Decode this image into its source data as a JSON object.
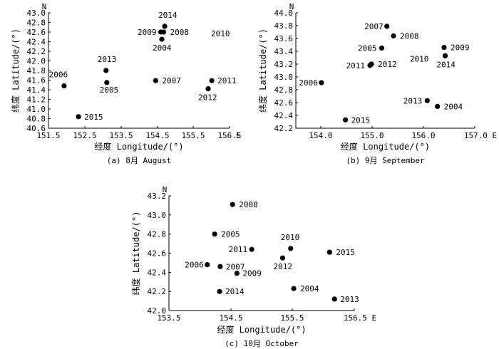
{
  "chart_data": [
    {
      "type": "scatter",
      "caption": "(a) 8月 August",
      "xlabel": "经度 Longitude/(°)",
      "ylabel": "纬度 Latitude/(°)",
      "x_unit_label": "E",
      "y_unit_label": "N",
      "xlim": [
        151.5,
        156.5
      ],
      "ylim": [
        40.6,
        43.0
      ],
      "x_ticks": [
        "151.5",
        "152.5",
        "153.5",
        "154.5",
        "155.5",
        "156.5"
      ],
      "y_ticks": [
        "40.6",
        "40.8",
        "41.0",
        "41.2",
        "41.4",
        "41.6",
        "41.8",
        "42.0",
        "42.2",
        "42.4",
        "42.6",
        "42.8",
        "43.0"
      ],
      "points": [
        {
          "label": "2006",
          "x": 151.93,
          "y": 41.48
        },
        {
          "label": "2015",
          "x": 152.33,
          "y": 40.84
        },
        {
          "label": "2013",
          "x": 153.09,
          "y": 41.8
        },
        {
          "label": "2005",
          "x": 153.11,
          "y": 41.55
        },
        {
          "label": "2007",
          "x": 154.46,
          "y": 41.59
        },
        {
          "label": "2014",
          "x": 154.71,
          "y": 42.72
        },
        {
          "label": "2009",
          "x": 154.6,
          "y": 42.6
        },
        {
          "label": "2008",
          "x": 154.68,
          "y": 42.6
        },
        {
          "label": "2004",
          "x": 154.63,
          "y": 42.45
        },
        {
          "label": "2011",
          "x": 156.01,
          "y": 41.59
        },
        {
          "label": "2012",
          "x": 155.91,
          "y": 41.42
        },
        {
          "label": "2010",
          "x": null,
          "y": null
        }
      ]
    },
    {
      "type": "scatter",
      "caption": "(b) 9月 September",
      "xlabel": "经度 Longitude/(°)",
      "ylabel": "纬度 Latitude/(°)",
      "x_unit_label": "E",
      "y_unit_label": "N",
      "xlim": [
        153.5,
        157.0
      ],
      "ylim": [
        42.2,
        44.0
      ],
      "x_ticks": [
        "154.0",
        "155.0",
        "156.0",
        "157.0 E"
      ],
      "y_ticks": [
        "42.2",
        "42.4",
        "42.6",
        "42.8",
        "43.0",
        "43.2",
        "43.4",
        "43.6",
        "43.8",
        "44.0"
      ],
      "points": [
        {
          "label": "2007",
          "x": 155.28,
          "y": 43.79
        },
        {
          "label": "2008",
          "x": 155.41,
          "y": 43.64
        },
        {
          "label": "2005",
          "x": 155.18,
          "y": 43.45
        },
        {
          "label": "2011",
          "x": 154.95,
          "y": 43.18
        },
        {
          "label": "2012",
          "x": 154.98,
          "y": 43.2
        },
        {
          "label": "2006",
          "x": 154.0,
          "y": 42.91
        },
        {
          "label": "2015",
          "x": 154.47,
          "y": 42.33
        },
        {
          "label": "2009",
          "x": 156.4,
          "y": 43.46
        },
        {
          "label": "2010",
          "x": 156.42,
          "y": 43.33
        },
        {
          "label": "2014",
          "x": 156.42,
          "y": 43.33
        },
        {
          "label": "2013",
          "x": 156.07,
          "y": 42.63
        },
        {
          "label": "2004",
          "x": 156.27,
          "y": 42.54
        }
      ]
    },
    {
      "type": "scatter",
      "caption": "(c) 10月 October",
      "xlabel": "经度 Longitude/(°)",
      "ylabel": "纬度 Latitude/(°)",
      "x_unit_label": "E",
      "y_unit_label": "N",
      "xlim": [
        153.5,
        156.5
      ],
      "ylim": [
        42.0,
        43.2
      ],
      "x_ticks": [
        "153.5",
        "154.5",
        "155.5",
        "156.5 E"
      ],
      "y_ticks": [
        "42.0",
        "42.2",
        "42.4",
        "42.6",
        "42.8",
        "43.0",
        "43.2"
      ],
      "points": [
        {
          "label": "2008",
          "x": 154.53,
          "y": 43.11
        },
        {
          "label": "2005",
          "x": 154.24,
          "y": 42.8
        },
        {
          "label": "2011",
          "x": 154.84,
          "y": 42.64
        },
        {
          "label": "2010",
          "x": 155.47,
          "y": 42.65
        },
        {
          "label": "2015",
          "x": 156.1,
          "y": 42.61
        },
        {
          "label": "2012",
          "x": 155.34,
          "y": 42.55
        },
        {
          "label": "2006",
          "x": 154.12,
          "y": 42.48
        },
        {
          "label": "2007",
          "x": 154.33,
          "y": 42.46
        },
        {
          "label": "2009",
          "x": 154.6,
          "y": 42.39
        },
        {
          "label": "2004",
          "x": 155.52,
          "y": 42.23
        },
        {
          "label": "2014",
          "x": 154.32,
          "y": 42.2
        },
        {
          "label": "2013",
          "x": 156.18,
          "y": 42.12
        }
      ]
    }
  ]
}
